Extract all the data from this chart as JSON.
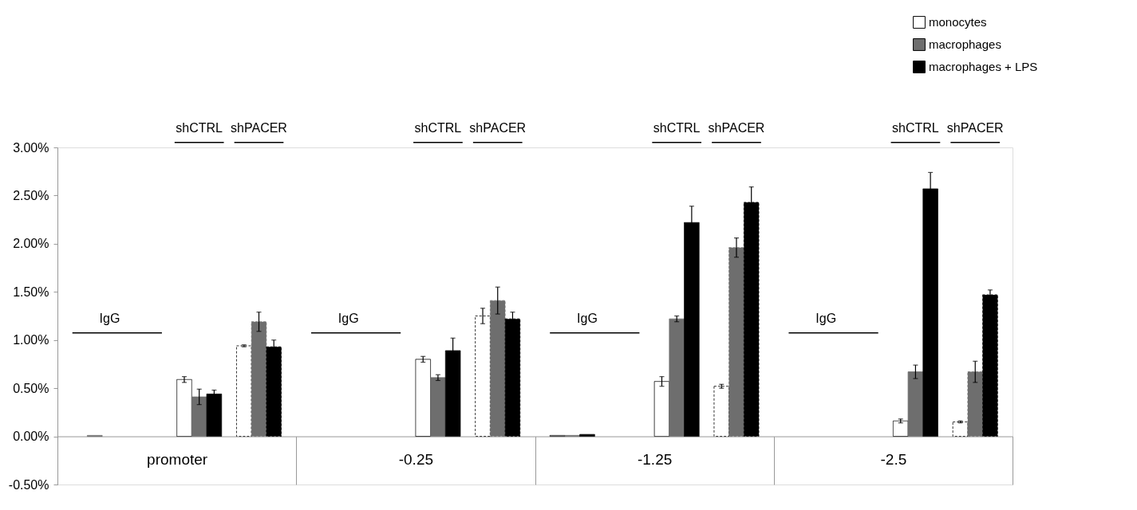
{
  "chart_data": {
    "type": "bar",
    "categories": [
      "promoter",
      "-0.25",
      "-1.25",
      "-2.5"
    ],
    "ylim": [
      -0.5,
      3.0
    ],
    "yticks": [
      {
        "value": -0.5,
        "label": "-0.50%"
      },
      {
        "value": 0.0,
        "label": "0.00%"
      },
      {
        "value": 0.5,
        "label": "0.50%"
      },
      {
        "value": 1.0,
        "label": "1.00%"
      },
      {
        "value": 1.5,
        "label": "1.50%"
      },
      {
        "value": 2.0,
        "label": "2.00%"
      },
      {
        "value": 2.5,
        "label": "2.50%"
      },
      {
        "value": 3.0,
        "label": "3.00%"
      }
    ],
    "legend": "top right",
    "series": [
      {
        "color": "#ffffff",
        "values": [
          null,
          null,
          0.01,
          null
        ]
      },
      {
        "color": "#6e6e6e",
        "values": [
          0.01,
          null,
          0.01,
          null
        ]
      },
      {
        "color": "#000000",
        "values": [
          null,
          null,
          0.02,
          null
        ]
      },
      {
        "name": "monocytes",
        "color": "#ffffff",
        "values": [
          0.59,
          0.8,
          0.57,
          0.16
        ],
        "errors": [
          0.03,
          0.03,
          0.05,
          0.02
        ]
      },
      {
        "name": "macrophages",
        "color": "#6e6e6e",
        "values": [
          0.41,
          0.61,
          1.22,
          0.67
        ],
        "errors": [
          0.08,
          0.03,
          0.03,
          0.07
        ]
      },
      {
        "name": "macrophages + LPS",
        "color": "#000000",
        "values": [
          0.44,
          0.89,
          2.22,
          2.57
        ],
        "errors": [
          0.04,
          0.13,
          0.17,
          0.17
        ]
      },
      {
        "color": "#ffffff",
        "values": [
          0.94,
          1.25,
          0.52,
          0.15
        ],
        "errors": [
          0.01,
          0.08,
          0.02,
          0.01
        ],
        "line_style": "dashed"
      },
      {
        "color": "#6e6e6e",
        "values": [
          1.19,
          1.41,
          1.96,
          0.67
        ],
        "errors": [
          0.1,
          0.14,
          0.1,
          0.11
        ],
        "line_style": "dashed"
      },
      {
        "color": "#000000",
        "values": [
          0.93,
          1.22,
          2.43,
          1.47
        ],
        "errors": [
          0.07,
          0.07,
          0.16,
          0.05
        ],
        "line_style": "dashed"
      }
    ],
    "annotations": [
      "IgG",
      "shCTRL",
      "shPACER",
      "IgG",
      "shCTRL",
      "shPACER",
      "IgG",
      "shCTRL",
      "shPACER",
      "IgG",
      "shCTRL",
      "shPACER"
    ]
  }
}
